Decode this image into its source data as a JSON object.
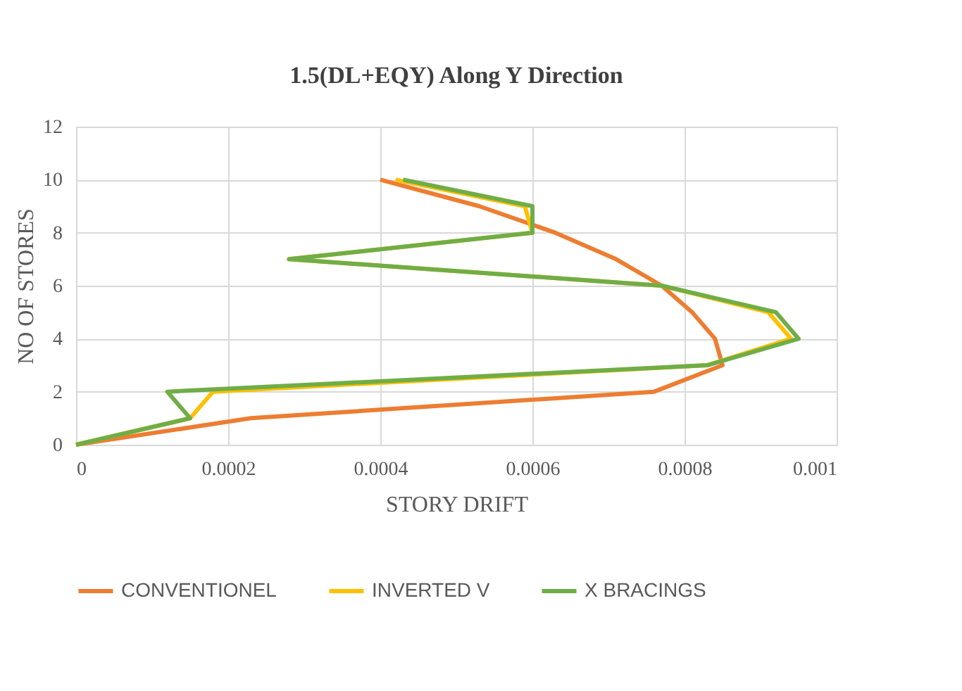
{
  "chart_data": {
    "type": "line",
    "title": "1.5(DL+EQY) Along Y Direction",
    "xlabel": "STORY DRIFT",
    "ylabel": "NO OF STORES",
    "xlim": [
      0,
      0.001
    ],
    "xticks": [
      0,
      0.0002,
      0.0004,
      0.0006,
      0.0008,
      0.001
    ],
    "ylim": [
      0,
      12
    ],
    "yticks": [
      0,
      2,
      4,
      6,
      8,
      10,
      12
    ],
    "grid": true,
    "legend": "bottom",
    "marker": "none",
    "line_style": "solid",
    "series": [
      {
        "name": "CONVENTIONEL",
        "color": "#ed7d31",
        "x": [
          0,
          0.00023,
          0.00076,
          0.00085,
          0.00084,
          0.00081,
          0.00077,
          0.00071,
          0.00063,
          0.00053,
          0.0004
        ],
        "values": [
          0,
          1,
          2,
          3,
          4,
          5,
          6,
          7,
          8,
          9,
          10
        ]
      },
      {
        "name": "INVERTED V",
        "color": "#ffc000",
        "x": [
          0,
          0.00015,
          0.00018,
          0.00083,
          0.00094,
          0.00091,
          0.00077,
          0.00028,
          0.0006,
          0.00059,
          0.00042
        ],
        "values": [
          0,
          1,
          2,
          3,
          4,
          5,
          6,
          7,
          8,
          9,
          10
        ]
      },
      {
        "name": "X BRACINGS",
        "color": "#70ad47",
        "x": [
          0,
          0.00015,
          0.00012,
          0.00083,
          0.00095,
          0.00092,
          0.00077,
          0.00028,
          0.0006,
          0.0006,
          0.00043
        ],
        "values": [
          0,
          1,
          2,
          3,
          4,
          5,
          6,
          7,
          8,
          9,
          10
        ]
      }
    ]
  }
}
